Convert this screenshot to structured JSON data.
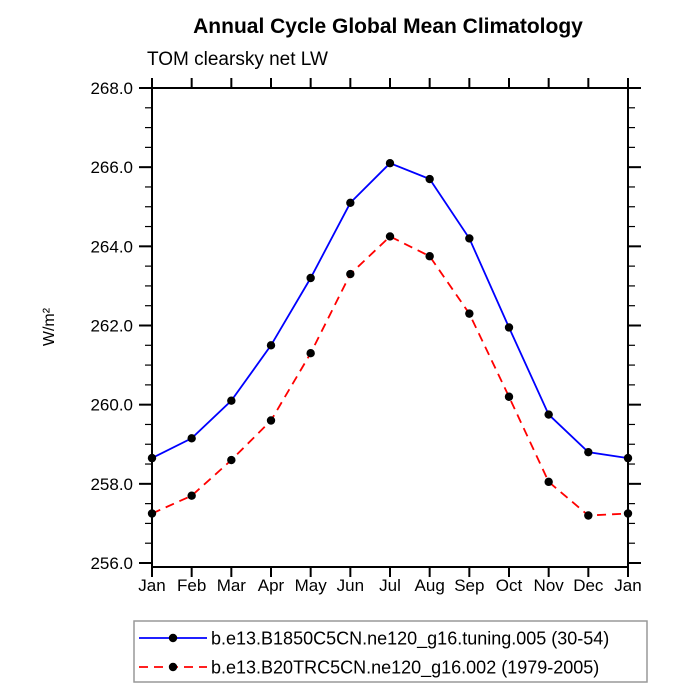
{
  "chart_data": {
    "type": "line",
    "title": "Annual Cycle Global Mean Climatology",
    "subtitle": "TOM clearsky net LW",
    "ylabel": "W/m²",
    "categories": [
      "Jan",
      "Feb",
      "Mar",
      "Apr",
      "May",
      "Jun",
      "Jul",
      "Aug",
      "Sep",
      "Oct",
      "Nov",
      "Dec",
      "Jan"
    ],
    "ylim": [
      256.0,
      268.0
    ],
    "ytick_step": 2.0,
    "ytick_minor_step": 0.5,
    "ytick_labels": [
      "256.0",
      "258.0",
      "260.0",
      "262.0",
      "264.0",
      "266.0",
      "268.0"
    ],
    "grid": false,
    "legend_position": "bottom",
    "axis_color": "#000000",
    "series": [
      {
        "name": "b.e13.B1850C5CN.ne120_g16.tuning.005 (30-54)",
        "color": "#0000ff",
        "line_style": "solid",
        "marker": "filled-circle",
        "marker_color": "#000000",
        "values": [
          258.65,
          259.15,
          260.1,
          261.5,
          263.2,
          265.1,
          266.1,
          265.7,
          264.2,
          261.95,
          259.75,
          258.8,
          258.65
        ]
      },
      {
        "name": "b.e13.B20TRC5CN.ne120_g16.002 (1979-2005)",
        "color": "#ff0000",
        "line_style": "dashed",
        "marker": "filled-circle",
        "marker_color": "#000000",
        "values": [
          257.25,
          257.7,
          258.6,
          259.6,
          261.3,
          263.3,
          264.25,
          263.75,
          262.3,
          260.2,
          258.05,
          257.2,
          257.25
        ]
      }
    ]
  }
}
